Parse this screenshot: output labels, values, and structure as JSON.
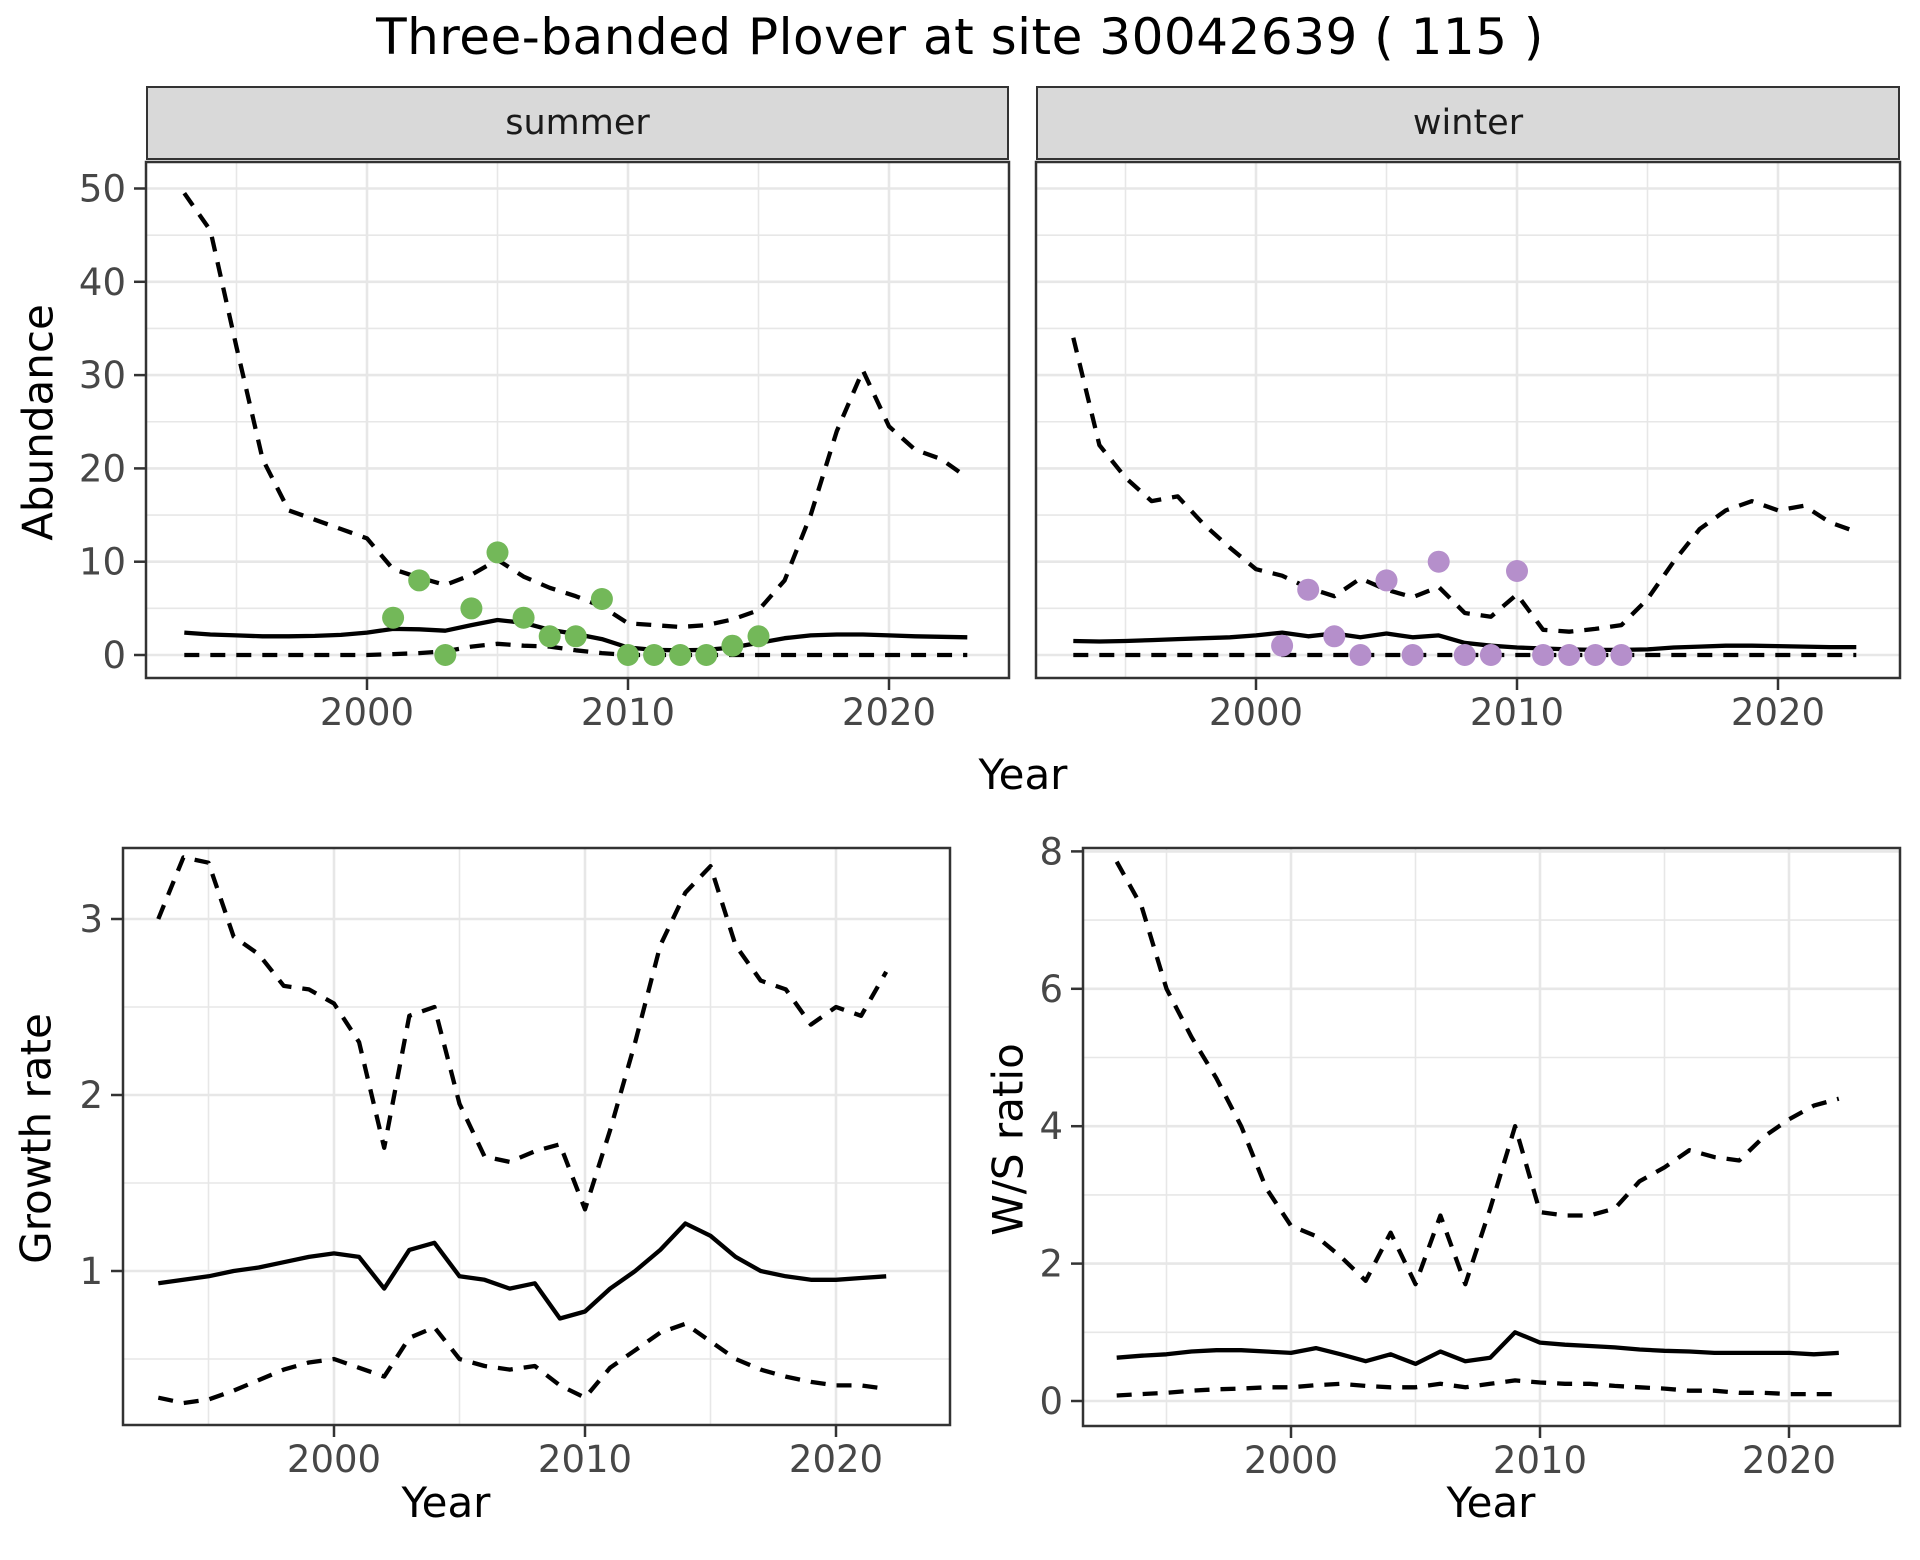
{
  "chart_data": {
    "type": "line",
    "title": "Three-banded Plover at site 30042639 ( 115 )",
    "legend_position": "none",
    "grid": "on",
    "colors": {
      "summer_points": "#73B859",
      "winter_points": "#B58FCB",
      "line": "#000000",
      "grid": "#e7e7e7",
      "strip_bg": "#d9d9d9",
      "panel_border": "#333333"
    },
    "panels": [
      {
        "name": "abundance-summer",
        "facet_label": "summer",
        "ylabel": "Abundance",
        "xlabel": "Year",
        "xlim": [
          1991.5,
          2024.6
        ],
        "ylim": [
          -2.5,
          52.8
        ],
        "x_major_ticks": [
          2000,
          2010,
          2020
        ],
        "x_minor_ticks": [
          1995,
          2005,
          2015
        ],
        "y_major_ticks": [
          0,
          10,
          20,
          30,
          40,
          50
        ],
        "y_minor_ticks": [
          5,
          15,
          25,
          35,
          45
        ],
        "years": [
          1993,
          1994,
          1995,
          1996,
          1997,
          1998,
          1999,
          2000,
          2001,
          2002,
          2003,
          2004,
          2005,
          2006,
          2007,
          2008,
          2009,
          2010,
          2011,
          2012,
          2013,
          2014,
          2015,
          2016,
          2017,
          2018,
          2019,
          2020,
          2021,
          2022,
          2023
        ],
        "series": [
          {
            "name": "upper-95ci",
            "style": "dashed",
            "values": [
              49.5,
              45.5,
              33,
              21,
              15.5,
              14.5,
              13.5,
              12.5,
              9.2,
              8.3,
              7.5,
              8.6,
              10.2,
              8.4,
              7.2,
              6.3,
              5.2,
              3.4,
              3.2,
              3.0,
              3.2,
              3.8,
              4.8,
              8,
              15,
              24,
              30.5,
              24.5,
              22,
              21,
              19
            ]
          },
          {
            "name": "median",
            "style": "solid",
            "values": [
              2.4,
              2.2,
              2.1,
              2.0,
              2.0,
              2.05,
              2.15,
              2.4,
              2.8,
              2.75,
              2.6,
              3.2,
              3.75,
              3.45,
              2.7,
              2.25,
              1.7,
              0.8,
              0.55,
              0.5,
              0.55,
              0.8,
              1.3,
              1.8,
              2.1,
              2.2,
              2.2,
              2.1,
              2.0,
              1.95,
              1.9
            ]
          },
          {
            "name": "lower-95ci",
            "style": "dashed",
            "values": [
              0,
              0,
              0,
              0,
              0,
              0,
              0,
              0,
              0.1,
              0.2,
              0.4,
              0.9,
              1.2,
              1.0,
              0.9,
              0.5,
              0.2,
              0,
              0,
              0,
              0,
              0,
              0,
              0,
              0,
              0,
              0,
              0,
              0,
              0,
              0
            ]
          }
        ],
        "points": {
          "name": "observed-counts-summer",
          "color": "#73B859",
          "years": [
            2001,
            2002,
            2003,
            2004,
            2005,
            2006,
            2007,
            2008,
            2009,
            2010,
            2011,
            2012,
            2013,
            2014,
            2015
          ],
          "values": [
            4,
            8,
            0,
            5,
            11,
            4,
            2,
            2,
            6,
            0,
            0,
            0,
            0,
            1,
            2
          ]
        }
      },
      {
        "name": "abundance-winter",
        "facet_label": "winter",
        "ylabel": "Abundance",
        "xlabel": "Year",
        "xlim": [
          1991.5,
          2024.6
        ],
        "ylim": [
          -2.5,
          52.8
        ],
        "x_major_ticks": [
          2000,
          2010,
          2020
        ],
        "x_minor_ticks": [
          1995,
          2005,
          2015
        ],
        "y_major_ticks": [
          0,
          10,
          20,
          30,
          40,
          50
        ],
        "y_minor_ticks": [
          5,
          15,
          25,
          35,
          45
        ],
        "years": [
          1993,
          1994,
          1995,
          1996,
          1997,
          1998,
          1999,
          2000,
          2001,
          2002,
          2003,
          2004,
          2005,
          2006,
          2007,
          2008,
          2009,
          2010,
          2011,
          2012,
          2013,
          2014,
          2015,
          2016,
          2017,
          2018,
          2019,
          2020,
          2021,
          2022,
          2023
        ],
        "series": [
          {
            "name": "upper-95ci",
            "style": "dashed",
            "values": [
              34,
              22.5,
              19,
              16.5,
              17,
              14,
              11.5,
              9.2,
              8.5,
              7.2,
              6.3,
              8.2,
              7.0,
              6.2,
              7.3,
              4.5,
              4.1,
              6.5,
              2.7,
              2.5,
              2.8,
              3.2,
              6,
              10,
              13.5,
              15.5,
              16.5,
              15.5,
              16,
              14.2,
              13.2
            ]
          },
          {
            "name": "median",
            "style": "solid",
            "values": [
              1.5,
              1.45,
              1.5,
              1.6,
              1.7,
              1.8,
              1.9,
              2.1,
              2.4,
              2.0,
              2.3,
              1.9,
              2.3,
              1.9,
              2.1,
              1.3,
              1.0,
              0.8,
              0.7,
              0.6,
              0.55,
              0.55,
              0.6,
              0.8,
              0.9,
              1.0,
              1.0,
              0.95,
              0.9,
              0.85,
              0.85
            ]
          },
          {
            "name": "lower-95ci",
            "style": "dashed",
            "values": [
              0,
              0,
              0,
              0,
              0,
              0,
              0,
              0,
              0,
              0,
              0,
              0,
              0,
              0,
              0,
              0,
              0,
              0,
              0,
              0,
              0,
              0,
              0,
              0,
              0,
              0,
              0,
              0,
              0,
              0,
              0
            ]
          }
        ],
        "points": {
          "name": "observed-counts-winter",
          "color": "#B58FCB",
          "years": [
            2001,
            2002,
            2003,
            2004,
            2005,
            2006,
            2007,
            2008,
            2009,
            2010,
            2011,
            2012,
            2013,
            2014
          ],
          "values": [
            1,
            7,
            2,
            0,
            8,
            0,
            10,
            0,
            0,
            9,
            0,
            0,
            0,
            0
          ]
        }
      },
      {
        "name": "growth-rate",
        "facet_label": "",
        "ylabel": "Growth rate",
        "xlabel": "Year",
        "xlim": [
          1992.6,
          2024.5
        ],
        "ylim": [
          0.1,
          3.4
        ],
        "x_major_ticks": [
          2000,
          2010,
          2020
        ],
        "x_minor_ticks": [
          1995,
          2005,
          2015
        ],
        "y_major_ticks": [
          1,
          2,
          3
        ],
        "y_minor_ticks": [
          0.5,
          1.5,
          2.5
        ],
        "years": [
          1993,
          1994,
          1995,
          1996,
          1997,
          1998,
          1999,
          2000,
          2001,
          2002,
          2003,
          2004,
          2005,
          2006,
          2007,
          2008,
          2009,
          2010,
          2011,
          2012,
          2013,
          2014,
          2015,
          2016,
          2017,
          2018,
          2019,
          2020,
          2021,
          2022
        ],
        "series": [
          {
            "name": "upper-95ci",
            "style": "dashed",
            "values": [
              3.0,
              3.35,
              3.32,
              2.9,
              2.8,
              2.62,
              2.6,
              2.52,
              2.3,
              1.7,
              2.45,
              2.5,
              1.95,
              1.65,
              1.62,
              1.68,
              1.72,
              1.35,
              1.8,
              2.3,
              2.85,
              3.15,
              3.3,
              2.85,
              2.65,
              2.6,
              2.4,
              2.5,
              2.45,
              2.7
            ]
          },
          {
            "name": "median",
            "style": "solid",
            "values": [
              0.93,
              0.95,
              0.97,
              1.0,
              1.02,
              1.05,
              1.08,
              1.1,
              1.08,
              0.9,
              1.12,
              1.16,
              0.97,
              0.95,
              0.9,
              0.93,
              0.73,
              0.77,
              0.9,
              1.0,
              1.12,
              1.27,
              1.2,
              1.08,
              1.0,
              0.97,
              0.95,
              0.95,
              0.96,
              0.97
            ]
          },
          {
            "name": "lower-95ci",
            "style": "dashed",
            "values": [
              0.28,
              0.25,
              0.27,
              0.32,
              0.38,
              0.44,
              0.48,
              0.5,
              0.45,
              0.4,
              0.62,
              0.68,
              0.5,
              0.46,
              0.44,
              0.46,
              0.35,
              0.28,
              0.45,
              0.55,
              0.65,
              0.7,
              0.6,
              0.5,
              0.44,
              0.4,
              0.37,
              0.35,
              0.35,
              0.33
            ]
          }
        ],
        "points": null
      },
      {
        "name": "ws-ratio",
        "facet_label": "",
        "ylabel": "W/S ratio",
        "xlabel": "Year",
        "xlim": [
          1992.6,
          2024.5
        ],
        "ylim": [
          -0.4,
          8.4
        ],
        "x_major_ticks": [
          2000,
          2010,
          2020
        ],
        "x_minor_ticks": [
          1995,
          2005,
          2015
        ],
        "y_major_ticks": [
          0,
          2,
          4,
          6,
          8
        ],
        "y_minor_ticks": [
          1,
          3,
          5,
          7
        ],
        "years": [
          1993,
          1994,
          1995,
          1996,
          1997,
          1998,
          1999,
          2000,
          2001,
          2002,
          2003,
          2004,
          2005,
          2006,
          2007,
          2008,
          2009,
          2010,
          2011,
          2012,
          2013,
          2014,
          2015,
          2016,
          2017,
          2018,
          2019,
          2020,
          2021,
          2022
        ],
        "series": [
          {
            "name": "upper-95ci",
            "style": "dashed",
            "values": [
              7.85,
              7.2,
              6.0,
              5.3,
              4.7,
              4.0,
              3.1,
              2.55,
              2.4,
              2.1,
              1.75,
              2.45,
              1.7,
              2.7,
              1.7,
              2.8,
              4.0,
              2.75,
              2.7,
              2.7,
              2.8,
              3.2,
              3.4,
              3.65,
              3.55,
              3.5,
              3.85,
              4.1,
              4.3,
              4.4
            ]
          },
          {
            "name": "median",
            "style": "solid",
            "values": [
              0.63,
              0.66,
              0.68,
              0.72,
              0.74,
              0.74,
              0.72,
              0.7,
              0.77,
              0.68,
              0.58,
              0.68,
              0.54,
              0.72,
              0.58,
              0.63,
              1.0,
              0.85,
              0.82,
              0.8,
              0.78,
              0.75,
              0.73,
              0.72,
              0.7,
              0.7,
              0.7,
              0.7,
              0.68,
              0.7
            ]
          },
          {
            "name": "lower-95ci",
            "style": "dashed",
            "values": [
              0.08,
              0.1,
              0.12,
              0.15,
              0.17,
              0.18,
              0.2,
              0.2,
              0.23,
              0.25,
              0.22,
              0.2,
              0.2,
              0.25,
              0.2,
              0.25,
              0.3,
              0.27,
              0.25,
              0.25,
              0.22,
              0.2,
              0.18,
              0.15,
              0.15,
              0.12,
              0.12,
              0.1,
              0.1,
              0.1
            ]
          }
        ],
        "points": null
      }
    ]
  }
}
